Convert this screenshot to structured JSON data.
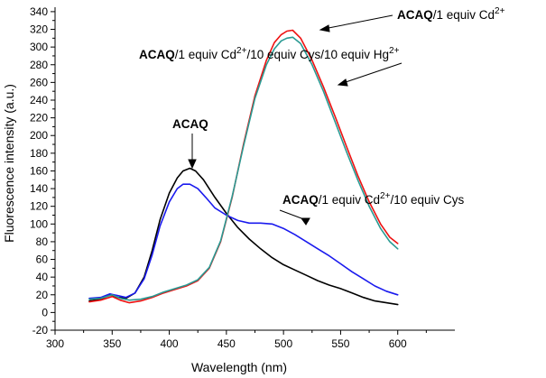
{
  "chart_data": {
    "type": "line",
    "title": "",
    "xlabel": "Wavelength (nm)",
    "ylabel": "Fluorescence intensity (a.u.)",
    "xlim": [
      300,
      650
    ],
    "ylim": [
      -20,
      345
    ],
    "xticks": [
      300,
      350,
      400,
      450,
      500,
      550,
      600
    ],
    "yticks": [
      -20,
      0,
      20,
      40,
      60,
      80,
      100,
      120,
      140,
      160,
      180,
      200,
      220,
      240,
      260,
      280,
      300,
      320,
      340
    ],
    "grid": false,
    "series": [
      {
        "name": "ACAQ",
        "color": "#000000",
        "points": [
          [
            330,
            13
          ],
          [
            340,
            15
          ],
          [
            348,
            20
          ],
          [
            355,
            17
          ],
          [
            362,
            16
          ],
          [
            370,
            22
          ],
          [
            378,
            40
          ],
          [
            385,
            70
          ],
          [
            392,
            105
          ],
          [
            400,
            135
          ],
          [
            407,
            152
          ],
          [
            412,
            160
          ],
          [
            418,
            163
          ],
          [
            423,
            160
          ],
          [
            430,
            150
          ],
          [
            440,
            130
          ],
          [
            450,
            112
          ],
          [
            460,
            96
          ],
          [
            470,
            83
          ],
          [
            480,
            72
          ],
          [
            490,
            62
          ],
          [
            500,
            54
          ],
          [
            510,
            48
          ],
          [
            520,
            42
          ],
          [
            530,
            36
          ],
          [
            540,
            31
          ],
          [
            550,
            27
          ],
          [
            560,
            22
          ],
          [
            570,
            17
          ],
          [
            580,
            13
          ],
          [
            590,
            11
          ],
          [
            600,
            9
          ]
        ]
      },
      {
        "name": "ACAQ/1 equiv Cd2+/10 equiv Cys",
        "color": "#1a1aee",
        "points": [
          [
            330,
            16
          ],
          [
            340,
            17
          ],
          [
            348,
            21
          ],
          [
            355,
            19
          ],
          [
            362,
            17
          ],
          [
            370,
            22
          ],
          [
            378,
            38
          ],
          [
            385,
            65
          ],
          [
            392,
            98
          ],
          [
            400,
            125
          ],
          [
            407,
            140
          ],
          [
            412,
            145
          ],
          [
            418,
            145
          ],
          [
            425,
            140
          ],
          [
            432,
            130
          ],
          [
            440,
            118
          ],
          [
            450,
            110
          ],
          [
            460,
            104
          ],
          [
            470,
            101
          ],
          [
            480,
            101
          ],
          [
            490,
            100
          ],
          [
            500,
            95
          ],
          [
            510,
            88
          ],
          [
            520,
            80
          ],
          [
            530,
            72
          ],
          [
            540,
            64
          ],
          [
            550,
            55
          ],
          [
            560,
            46
          ],
          [
            570,
            38
          ],
          [
            580,
            30
          ],
          [
            590,
            24
          ],
          [
            600,
            20
          ]
        ]
      },
      {
        "name": "ACAQ/1 equiv Cd2+",
        "color": "#ee1111",
        "points": [
          [
            330,
            12
          ],
          [
            340,
            14
          ],
          [
            350,
            18
          ],
          [
            357,
            14
          ],
          [
            365,
            11
          ],
          [
            375,
            13
          ],
          [
            385,
            17
          ],
          [
            395,
            22
          ],
          [
            405,
            26
          ],
          [
            415,
            30
          ],
          [
            425,
            36
          ],
          [
            435,
            50
          ],
          [
            445,
            80
          ],
          [
            455,
            130
          ],
          [
            465,
            190
          ],
          [
            475,
            245
          ],
          [
            485,
            285
          ],
          [
            492,
            305
          ],
          [
            498,
            314
          ],
          [
            503,
            318
          ],
          [
            508,
            319
          ],
          [
            515,
            310
          ],
          [
            525,
            285
          ],
          [
            535,
            255
          ],
          [
            545,
            222
          ],
          [
            555,
            188
          ],
          [
            565,
            155
          ],
          [
            575,
            125
          ],
          [
            585,
            100
          ],
          [
            593,
            85
          ],
          [
            600,
            78
          ]
        ]
      },
      {
        "name": "ACAQ/1 equiv Cd2+/10 equiv Cys/10 equiv Hg2+",
        "color": "#2a9a93",
        "points": [
          [
            330,
            15
          ],
          [
            340,
            16
          ],
          [
            350,
            20
          ],
          [
            357,
            16
          ],
          [
            365,
            14
          ],
          [
            375,
            15
          ],
          [
            385,
            18
          ],
          [
            395,
            23
          ],
          [
            405,
            27
          ],
          [
            415,
            31
          ],
          [
            425,
            37
          ],
          [
            435,
            51
          ],
          [
            445,
            81
          ],
          [
            455,
            131
          ],
          [
            465,
            188
          ],
          [
            475,
            242
          ],
          [
            485,
            280
          ],
          [
            492,
            298
          ],
          [
            498,
            307
          ],
          [
            503,
            310
          ],
          [
            508,
            311
          ],
          [
            515,
            304
          ],
          [
            525,
            280
          ],
          [
            535,
            250
          ],
          [
            545,
            216
          ],
          [
            555,
            182
          ],
          [
            565,
            150
          ],
          [
            575,
            120
          ],
          [
            585,
            95
          ],
          [
            593,
            80
          ],
          [
            600,
            72
          ]
        ]
      }
    ],
    "annotations": [
      {
        "bold": "ACAQ",
        "rest": "",
        "sup": "",
        "tail": ""
      },
      {
        "bold": "ACAQ",
        "rest": "/1 equiv Cd",
        "sup": "2+",
        "tail": ""
      },
      {
        "bold": "ACAQ",
        "rest": "/1 equiv Cd",
        "sup": "2+",
        "tail": "/10 equiv Cys/10 equiv Hg",
        "sup2": "2+"
      },
      {
        "bold": "ACAQ",
        "rest": "/1 equiv Cd",
        "sup": "2+",
        "tail": "/10 equiv Cys"
      }
    ]
  }
}
